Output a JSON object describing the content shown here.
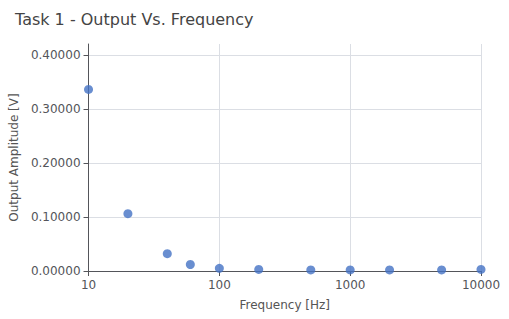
{
  "chart_data": {
    "type": "scatter",
    "title": "Task 1 - Output Vs. Frequency",
    "xlabel": "Frequency [Hz]",
    "ylabel": "Output Amplitude [V]",
    "x": [
      10,
      20,
      40,
      60,
      100,
      200,
      500,
      1000,
      2000,
      5000,
      10000
    ],
    "values": [
      0.336,
      0.106,
      0.032,
      0.012,
      0.005,
      0.003,
      0.002,
      0.002,
      0.002,
      0.002,
      0.003
    ],
    "color": "#4472C4",
    "log": "x",
    "xlim": [
      10,
      10000
    ],
    "xticks": [
      10,
      100,
      1000,
      10000
    ],
    "ylim": [
      0.0,
      0.42
    ],
    "yticks": [
      {
        "value": 0.0,
        "label": "0.00000"
      },
      {
        "value": 0.1,
        "label": "0.10000"
      },
      {
        "value": 0.2,
        "label": "0.20000"
      },
      {
        "value": 0.3,
        "label": "0.30000"
      },
      {
        "value": 0.4,
        "label": "0.40000"
      }
    ],
    "grid": true
  }
}
